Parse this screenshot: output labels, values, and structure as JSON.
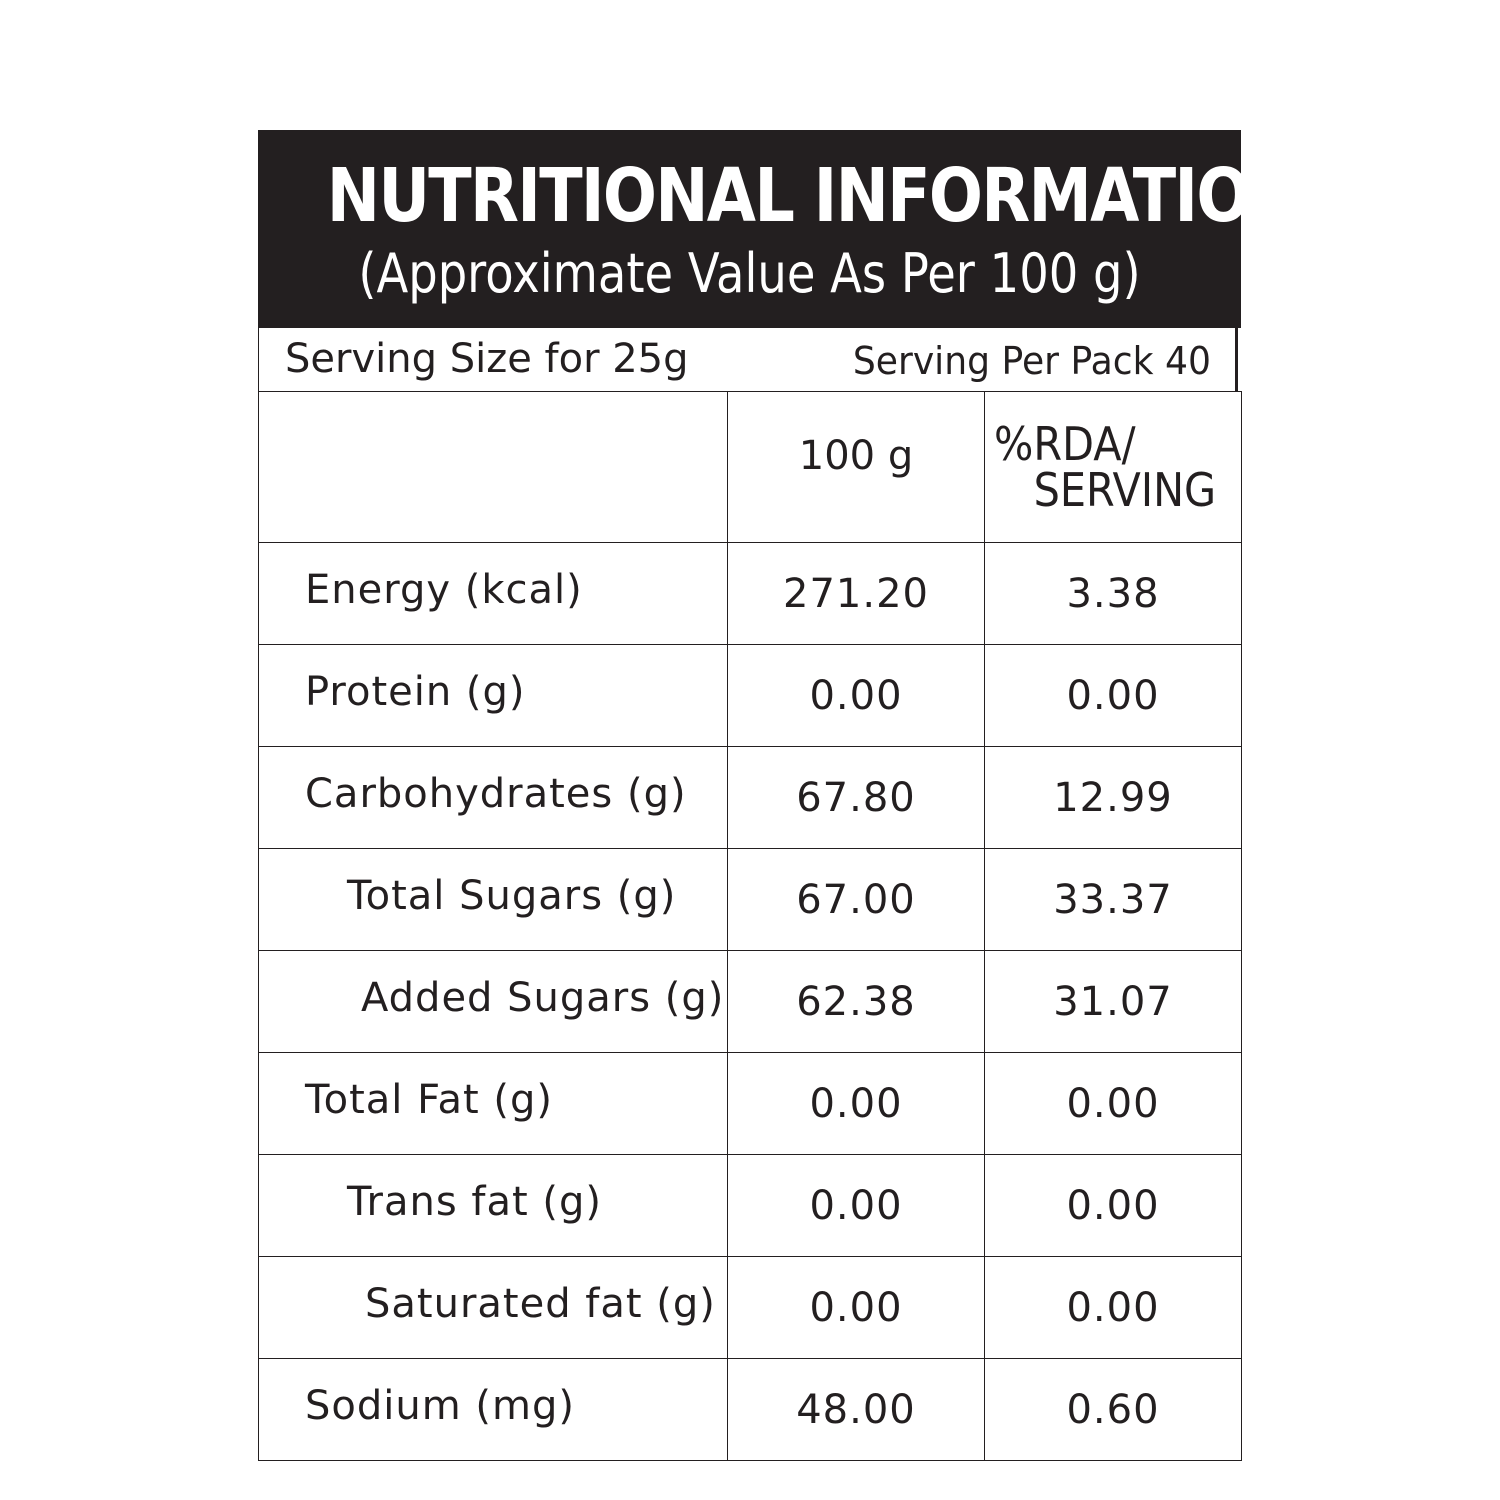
{
  "header": {
    "title": "NUTRITIONAL INFORMATION",
    "subtitle": "(Approximate Value As Per 100 g)"
  },
  "serving": {
    "size": "Serving Size for 25g",
    "per_pack": "Serving Per Pack 40"
  },
  "table": {
    "columns": {
      "per_100g": "100 g",
      "rda_line1": "%RDA/",
      "rda_line2": "SERVING"
    },
    "rows": [
      {
        "nutrient": "Energy (kcal)",
        "per_100g": "271.20",
        "rda": "3.38"
      },
      {
        "nutrient": "Protein (g)",
        "per_100g": "0.00",
        "rda": "0.00"
      },
      {
        "nutrient": "Carbohydrates (g)",
        "per_100g": "67.80",
        "rda": "12.99"
      },
      {
        "nutrient": "Total Sugars (g)",
        "per_100g": "67.00",
        "rda": "33.37"
      },
      {
        "nutrient": "Added Sugars (g)",
        "per_100g": "62.38",
        "rda": "31.07"
      },
      {
        "nutrient": "Total Fat (g)",
        "per_100g": "0.00",
        "rda": "0.00"
      },
      {
        "nutrient": "Trans fat (g)",
        "per_100g": "0.00",
        "rda": "0.00"
      },
      {
        "nutrient": "Saturated fat (g)",
        "per_100g": "0.00",
        "rda": "0.00"
      },
      {
        "nutrient": "Sodium (mg)",
        "per_100g": "48.00",
        "rda": "0.60"
      }
    ]
  },
  "colors": {
    "header_background": "#231f20",
    "header_text": "#ffffff",
    "text": "#231f20"
  }
}
